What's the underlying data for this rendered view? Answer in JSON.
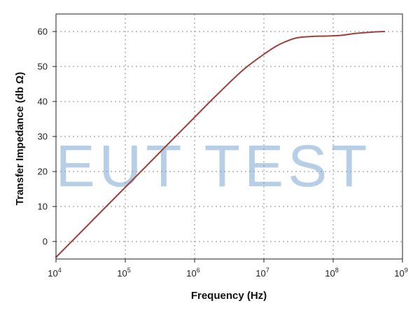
{
  "chart_data": {
    "type": "line",
    "x_scale": "log",
    "xlabel": "Frequency (Hz)",
    "ylabel": "Transfer Impedance (db Ω)",
    "xlim": [
      10000,
      1000000000
    ],
    "ylim": [
      -5,
      65
    ],
    "x_ticks": [
      {
        "value": 10000,
        "base": "10",
        "exp": "4"
      },
      {
        "value": 100000,
        "base": "10",
        "exp": "5"
      },
      {
        "value": 1000000,
        "base": "10",
        "exp": "6"
      },
      {
        "value": 10000000,
        "base": "10",
        "exp": "7"
      },
      {
        "value": 100000000,
        "base": "10",
        "exp": "8"
      },
      {
        "value": 1000000000,
        "base": "10",
        "exp": "9"
      }
    ],
    "y_ticks": [
      "0",
      "10",
      "20",
      "30",
      "40",
      "50",
      "60"
    ],
    "grid": true,
    "line_color": "#a0403a",
    "series": [
      {
        "x": [
          10000,
          20000,
          50000,
          100000,
          200000,
          500000,
          1000000,
          2000000,
          5000000,
          10000000,
          15000000,
          20000000,
          30000000,
          50000000,
          80000000,
          130000000,
          200000000,
          350000000,
          550000000
        ],
        "y": [
          -4.5,
          1.5,
          9.5,
          15.5,
          21.5,
          29.5,
          35.5,
          41.5,
          49.0,
          53.5,
          55.8,
          57.0,
          58.2,
          58.6,
          58.7,
          58.9,
          59.4,
          59.8,
          60.0
        ]
      }
    ],
    "watermark": {
      "text": "EUT TEST",
      "color": "#b7cfe6"
    }
  }
}
